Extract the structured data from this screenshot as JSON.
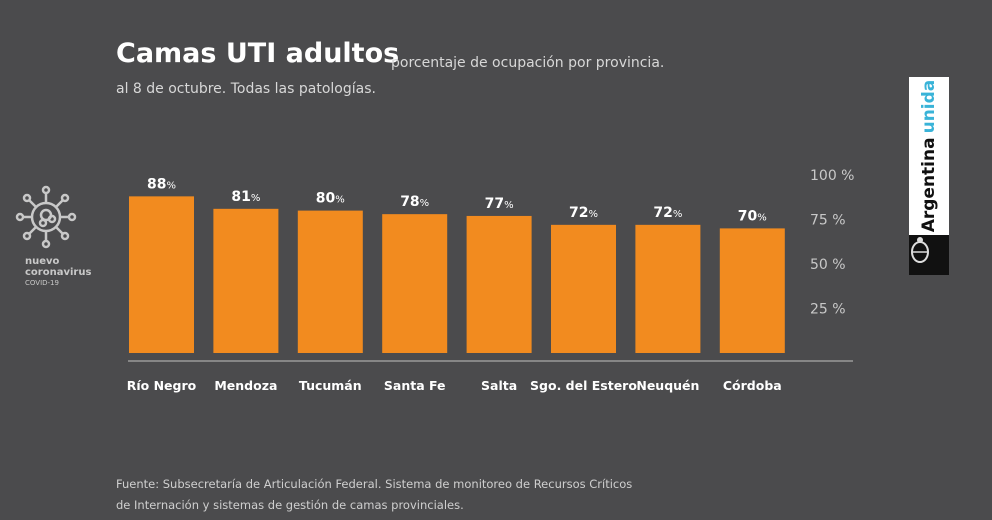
{
  "header": {
    "title": "Camas UTI adultos",
    "subtitle": "porcentaje de ocupación por provincia.",
    "subtitle2": "al 8 de octubre. Todas las patologías."
  },
  "badge": {
    "line1": "nuevo",
    "line2": "coronavirus",
    "line3": "COVID-19",
    "icon": "virus-icon"
  },
  "brand": {
    "word1": "Argentina",
    "word2": "unida",
    "accent": "#39b3d8",
    "icon": "coat-of-arms-icon"
  },
  "source": {
    "line1": "Fuente: Subsecretaría de Articulación Federal. Sistema de monitoreo de Recursos Críticos",
    "line2": "de Internación  y sistemas de gestión de camas provinciales."
  },
  "chart_data": {
    "type": "bar",
    "title": "Camas UTI adultos",
    "categories": [
      "Río Negro",
      "Mendoza",
      "Tucumán",
      "Santa Fe",
      "Salta",
      "Sgo. del Estero",
      "Neuquén",
      "Córdoba"
    ],
    "values": [
      88,
      81,
      80,
      78,
      77,
      72,
      72,
      70
    ],
    "value_suffix": "%",
    "ylim": [
      0,
      100
    ],
    "yticks": [
      "25 %",
      "50 %",
      "75 %",
      "100 %"
    ],
    "ytick_values": [
      25,
      50,
      75,
      100
    ],
    "y_axis_position": "right",
    "grid": false,
    "bar_color": "#f28b1f",
    "background": "#4b4b4d"
  }
}
